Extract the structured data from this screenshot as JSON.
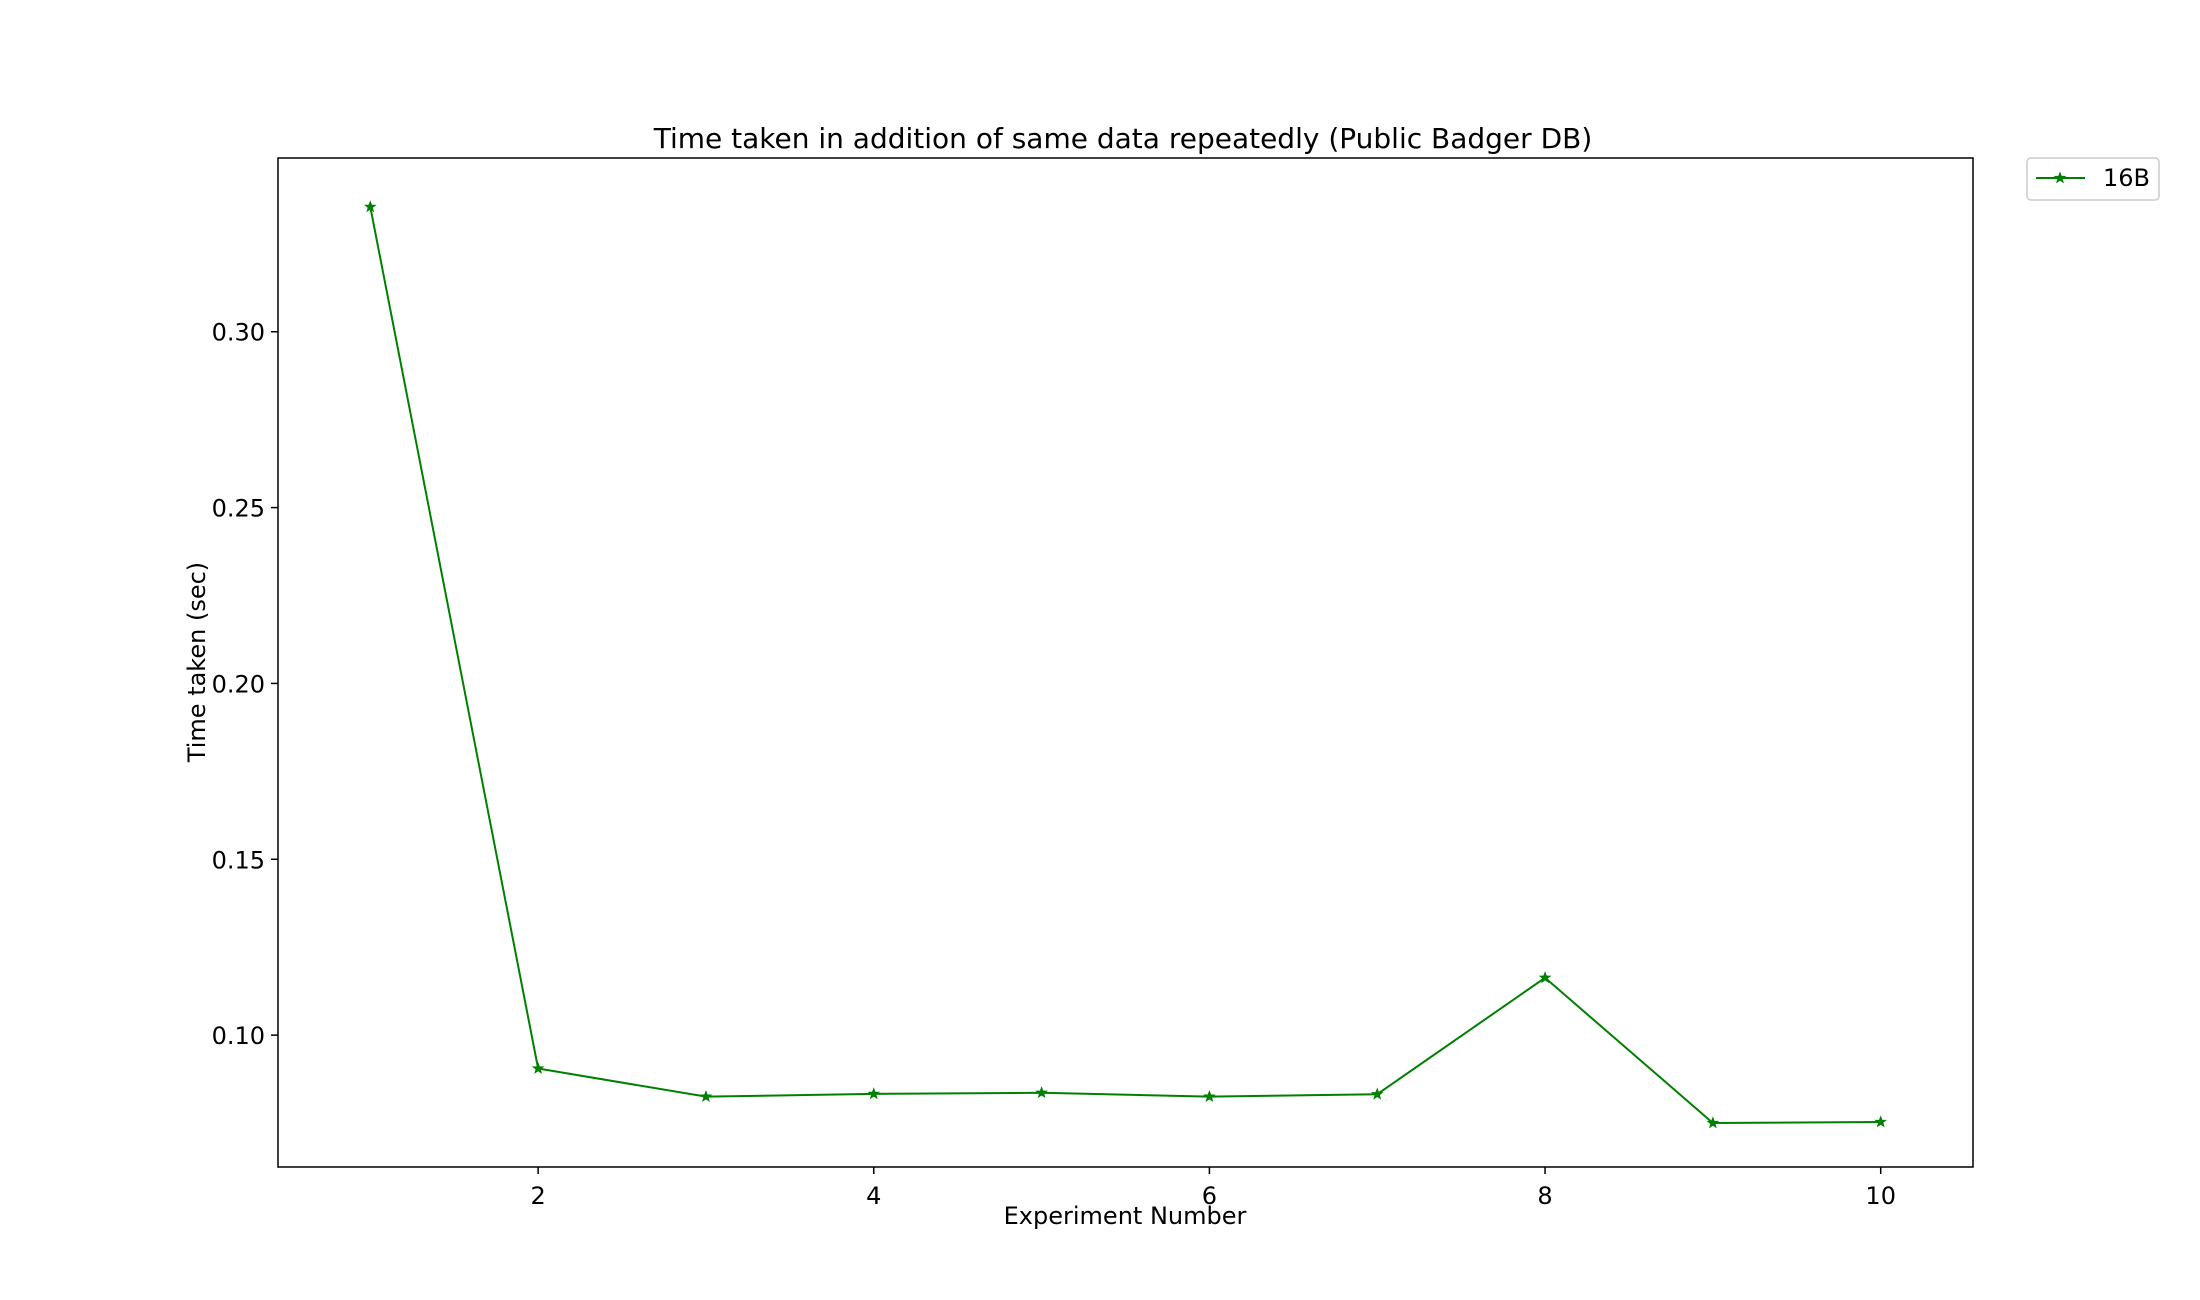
{
  "chart_data": {
    "type": "line",
    "title": "Time taken in addition of same data repeatedly (Public Badger DB)",
    "xlabel": "Experiment Number",
    "ylabel": "Time taken (sec)",
    "x": [
      1,
      2,
      3,
      4,
      5,
      6,
      7,
      8,
      9,
      10
    ],
    "series": [
      {
        "name": "16B",
        "color": "#008000",
        "marker": "star",
        "values": [
          0.3355,
          0.0905,
          0.0825,
          0.0833,
          0.0836,
          0.0825,
          0.0832,
          0.1163,
          0.075,
          0.0753
        ]
      }
    ],
    "xlim": [
      0.45,
      10.55
    ],
    "ylim": [
      0.0625,
      0.3494
    ],
    "xticks": [
      2,
      4,
      6,
      8,
      10
    ],
    "xtick_labels": [
      "2",
      "4",
      "6",
      "8",
      "10"
    ],
    "yticks": [
      0.1,
      0.15,
      0.2,
      0.25,
      0.3
    ],
    "ytick_labels": [
      "0.10",
      "0.15",
      "0.20",
      "0.25",
      "0.30"
    ],
    "grid": false,
    "legend_position": "outside-top-right"
  }
}
